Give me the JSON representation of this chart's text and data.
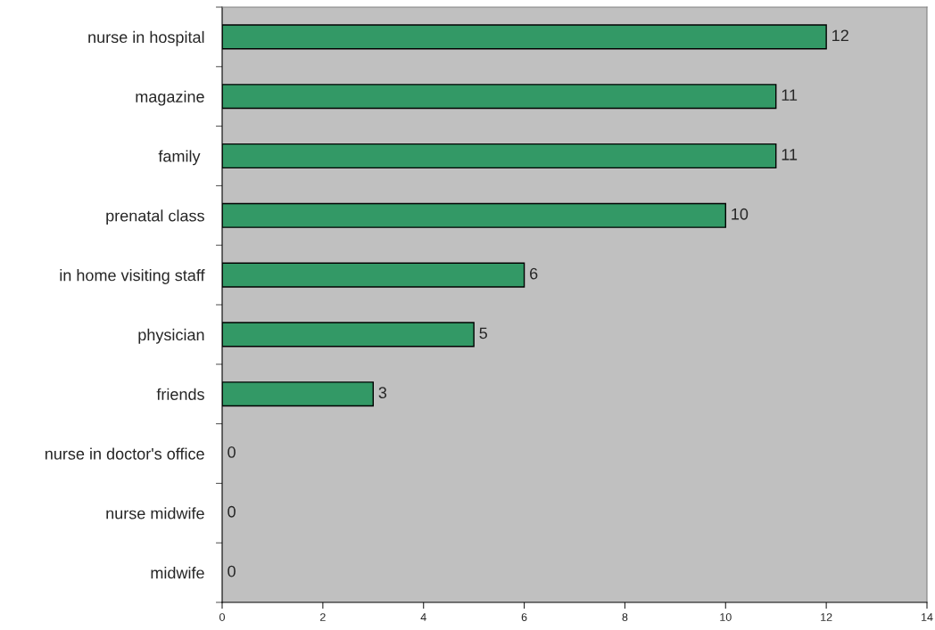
{
  "chart_data": {
    "type": "bar",
    "orientation": "horizontal",
    "categories": [
      "nurse in hospital",
      "magazine",
      "family ",
      "prenatal class",
      "in home visiting staff",
      "physician",
      "friends",
      "nurse in doctor's office",
      "nurse midwife",
      "midwife"
    ],
    "values": [
      12,
      11,
      11,
      10,
      6,
      5,
      3,
      0,
      0,
      0
    ],
    "color": "#339966",
    "xlim": [
      0,
      14
    ],
    "xticks": [
      0,
      2,
      4,
      6,
      8,
      10,
      12,
      14
    ],
    "data_labels": true,
    "grid": false,
    "legend": false
  }
}
